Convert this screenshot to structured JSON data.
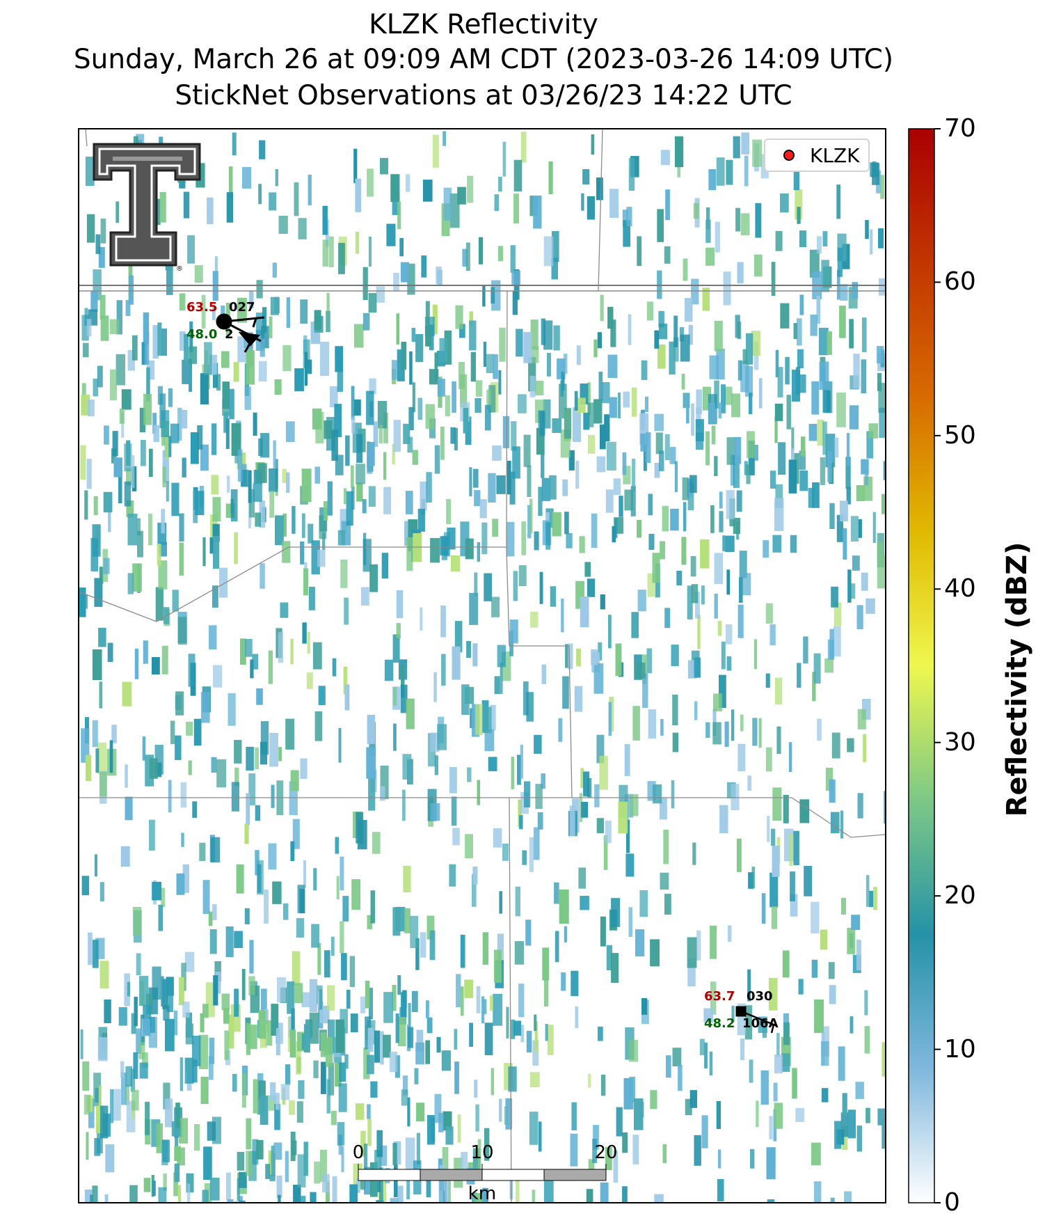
{
  "title": {
    "line1": "KLZK Reflectivity",
    "line2": "Sunday, March 26 at 09:09 AM CDT (2023-03-26 14:09 UTC)",
    "line3": "StickNet Observations at 03/26/23 14:22 UTC"
  },
  "legend": {
    "label": "KLZK",
    "marker_color": "#ff1a1a"
  },
  "colorbar": {
    "title": "Reflectivity (dBZ)",
    "min": 0,
    "max": 70,
    "ticks": [
      "0",
      "10",
      "20",
      "30",
      "40",
      "50",
      "60",
      "70"
    ],
    "colors": [
      "#ffffff",
      "#7fb7dd",
      "#2592a7",
      "#7cc886",
      "#eef74e",
      "#e0b900",
      "#d76b00",
      "#c23600",
      "#a90000"
    ]
  },
  "stations": [
    {
      "temperature": "63.5",
      "dewpoint": "48.0",
      "id": "027",
      "code": "2",
      "marker": "circle",
      "temp_color": "#b00000",
      "dew_color": "#006400"
    },
    {
      "temperature": "63.7",
      "dewpoint": "48.2",
      "id": "030",
      "code": "106A",
      "marker": "square",
      "temp_color": "#b00000",
      "dew_color": "#006400"
    }
  ],
  "scalebar": {
    "ticks": [
      "0",
      "10",
      "20"
    ],
    "unit": "km"
  },
  "logo": {
    "name": "texas-tech-double-t-logo",
    "text": "®"
  }
}
